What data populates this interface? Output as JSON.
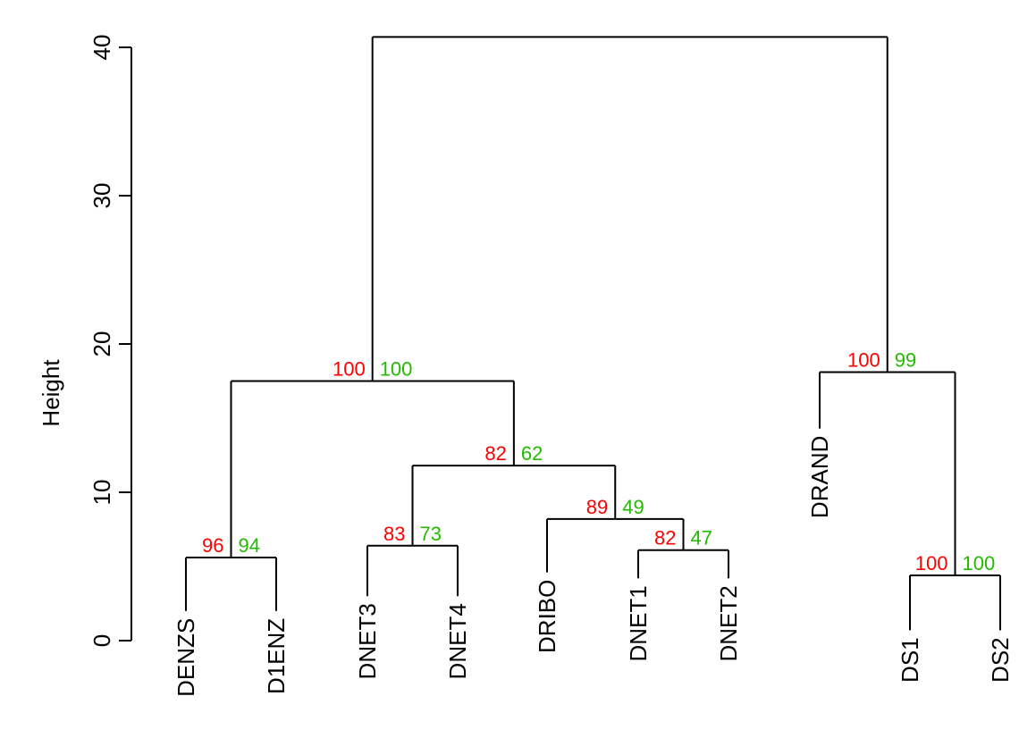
{
  "chart_data": {
    "type": "dendrogram",
    "ylabel": "Height",
    "ylim": [
      0,
      40
    ],
    "y_ticks": [
      0,
      10,
      20,
      30,
      40
    ],
    "colors": {
      "au": "#ff0000",
      "bp": "#22bb00",
      "line": "#000000"
    },
    "leaves": [
      {
        "label": "DENZS",
        "height": 2
      },
      {
        "label": "D1ENZ",
        "height": 2
      },
      {
        "label": "DNET3",
        "height": 3
      },
      {
        "label": "DNET4",
        "height": 3
      },
      {
        "label": "DRIBO",
        "height": 4.6
      },
      {
        "label": "DNET1",
        "height": 4.2
      },
      {
        "label": "DNET2",
        "height": 4.2
      },
      {
        "label": "DRAND",
        "height": 14.3
      },
      {
        "label": "DS1",
        "height": 0.7
      },
      {
        "label": "DS2",
        "height": 0.7
      }
    ],
    "merges": [
      {
        "id": "m1",
        "left": "L0",
        "right": "L1",
        "height": 5.6,
        "au": "96",
        "bp": "94"
      },
      {
        "id": "m2",
        "left": "L2",
        "right": "L3",
        "height": 6.4,
        "au": "83",
        "bp": "73"
      },
      {
        "id": "m3",
        "left": "L5",
        "right": "L6",
        "height": 6.1,
        "au": "82",
        "bp": "47"
      },
      {
        "id": "m4",
        "left": "L4",
        "right": "m3",
        "height": 8.2,
        "au": "89",
        "bp": "49"
      },
      {
        "id": "m5",
        "left": "m2",
        "right": "m4",
        "height": 11.8,
        "au": "82",
        "bp": "62"
      },
      {
        "id": "m6",
        "left": "m1",
        "right": "m5",
        "height": 17.5,
        "au": "100",
        "bp": "100"
      },
      {
        "id": "m7",
        "left": "L8",
        "right": "L9",
        "height": 4.4,
        "au": "100",
        "bp": "100"
      },
      {
        "id": "m8",
        "left": "L7",
        "right": "m7",
        "height": 18.1,
        "au": "100",
        "bp": "99"
      },
      {
        "id": "m9",
        "left": "m6",
        "right": "m8",
        "height": 40.7,
        "au": "",
        "bp": ""
      }
    ]
  }
}
